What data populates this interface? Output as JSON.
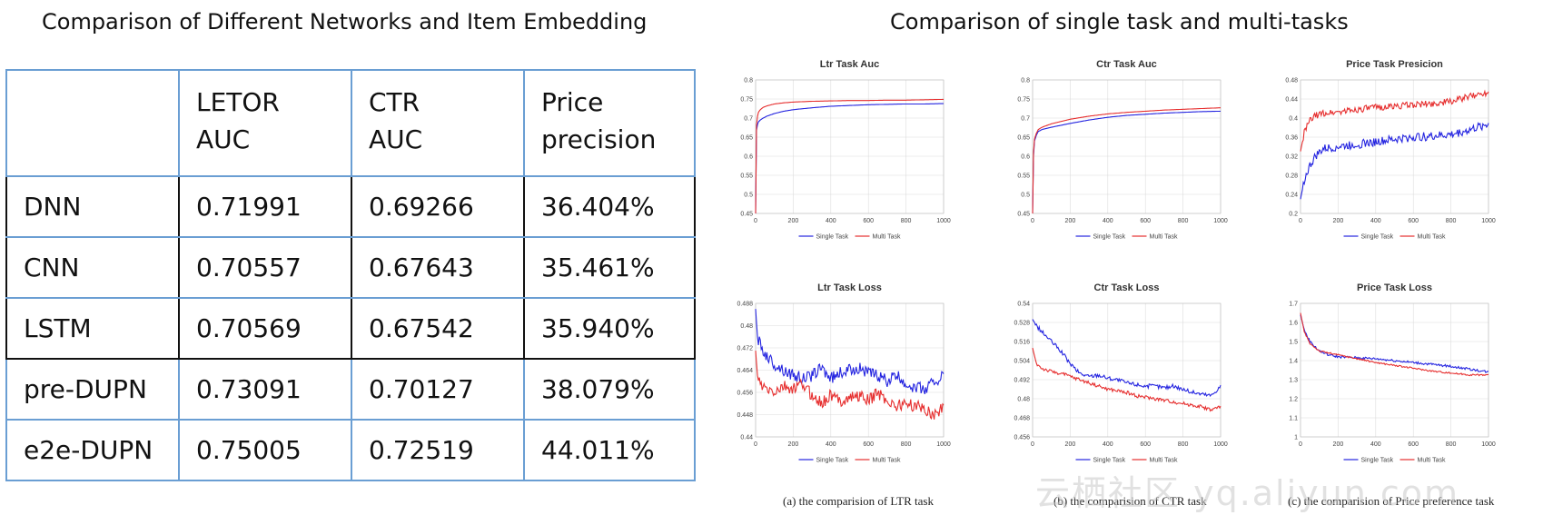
{
  "left_title": "Comparison of Different Networks and Item Embedding",
  "right_title": "Comparison of single task and multi-tasks",
  "table": {
    "headers": [
      [
        "",
        ""
      ],
      [
        "LETOR",
        "AUC"
      ],
      [
        "CTR",
        "AUC"
      ],
      [
        "Price",
        "precision"
      ]
    ],
    "rows": [
      [
        "DNN",
        "0.71991",
        "0.69266",
        "36.404%"
      ],
      [
        "CNN",
        "0.70557",
        "0.67643",
        "35.461%"
      ],
      [
        "LSTM",
        "0.70569",
        "0.67542",
        "35.940%"
      ],
      [
        "pre-DUPN",
        "0.73091",
        "0.70127",
        "38.079%"
      ],
      [
        "e2e-DUPN",
        "0.75005",
        "0.72519",
        "44.011%"
      ]
    ]
  },
  "captions": [
    "(a) the comparision of LTR task",
    "(b) the comparision of CTR task",
    "(c) the comparision of Price preference task"
  ],
  "watermark": "云栖社区 yq.aliyun.com",
  "colors": {
    "single": "#2424e0",
    "multi": "#e62e2e"
  },
  "chart_data": [
    {
      "type": "line",
      "title": "Ltr Task Auc",
      "xlim": [
        0,
        1000
      ],
      "ylim": [
        0.45,
        0.8
      ],
      "xticks": [
        "0",
        "200",
        "400",
        "600",
        "800",
        "1000"
      ],
      "yticks": [
        "0.45",
        "0.5",
        "0.55",
        "0.6",
        "0.65",
        "0.7",
        "0.75",
        "0.8"
      ],
      "series": [
        {
          "name": "Single Task",
          "x": [
            0,
            3,
            8,
            15,
            25,
            40,
            60,
            100,
            150,
            200,
            300,
            400,
            500,
            600,
            700,
            800,
            900,
            1000
          ],
          "y": [
            0.45,
            0.66,
            0.68,
            0.69,
            0.695,
            0.7,
            0.705,
            0.712,
            0.718,
            0.722,
            0.727,
            0.731,
            0.733,
            0.735,
            0.736,
            0.737,
            0.737,
            0.738
          ],
          "noise": 0
        },
        {
          "name": "Multi Task",
          "x": [
            0,
            3,
            8,
            15,
            25,
            40,
            60,
            100,
            150,
            200,
            300,
            400,
            500,
            600,
            700,
            800,
            900,
            1000
          ],
          "y": [
            0.45,
            0.67,
            0.7,
            0.715,
            0.722,
            0.728,
            0.732,
            0.737,
            0.74,
            0.742,
            0.744,
            0.745,
            0.746,
            0.746,
            0.747,
            0.747,
            0.748,
            0.749
          ],
          "noise": 0
        }
      ]
    },
    {
      "type": "line",
      "title": "Ctr Task Auc",
      "xlim": [
        0,
        1000
      ],
      "ylim": [
        0.45,
        0.8
      ],
      "xticks": [
        "0",
        "200",
        "400",
        "600",
        "800",
        "1000"
      ],
      "yticks": [
        "0.45",
        "0.5",
        "0.55",
        "0.6",
        "0.65",
        "0.7",
        "0.75",
        "0.8"
      ],
      "series": [
        {
          "name": "Single Task",
          "x": [
            0,
            5,
            10,
            20,
            30,
            50,
            100,
            200,
            300,
            400,
            500,
            600,
            700,
            800,
            900,
            1000
          ],
          "y": [
            0.45,
            0.6,
            0.64,
            0.655,
            0.665,
            0.67,
            0.676,
            0.686,
            0.695,
            0.702,
            0.707,
            0.71,
            0.713,
            0.715,
            0.717,
            0.718
          ],
          "noise": 0
        },
        {
          "name": "Multi Task",
          "x": [
            0,
            5,
            10,
            20,
            30,
            50,
            100,
            200,
            300,
            400,
            500,
            600,
            700,
            800,
            900,
            1000
          ],
          "y": [
            0.45,
            0.61,
            0.645,
            0.66,
            0.67,
            0.676,
            0.685,
            0.697,
            0.705,
            0.711,
            0.715,
            0.718,
            0.721,
            0.723,
            0.725,
            0.727
          ],
          "noise": 0
        }
      ]
    },
    {
      "type": "line",
      "title": "Price Task Presicion",
      "xlim": [
        0,
        1000
      ],
      "ylim": [
        0.2,
        0.48
      ],
      "xticks": [
        "0",
        "200",
        "400",
        "600",
        "800",
        "1000"
      ],
      "yticks": [
        "0.2",
        "0.24",
        "0.28",
        "0.32",
        "0.36",
        "0.4",
        "0.44",
        "0.48"
      ],
      "series": [
        {
          "name": "Single Task",
          "x": [
            0,
            20,
            50,
            80,
            120,
            200,
            300,
            400,
            500,
            600,
            700,
            800,
            900,
            1000
          ],
          "y": [
            0.23,
            0.27,
            0.3,
            0.32,
            0.335,
            0.34,
            0.345,
            0.35,
            0.355,
            0.36,
            0.362,
            0.365,
            0.375,
            0.388
          ],
          "noise": 0.009
        },
        {
          "name": "Multi Task",
          "x": [
            0,
            20,
            50,
            80,
            120,
            200,
            300,
            400,
            500,
            600,
            700,
            800,
            900,
            1000
          ],
          "y": [
            0.33,
            0.37,
            0.395,
            0.405,
            0.41,
            0.413,
            0.418,
            0.422,
            0.425,
            0.428,
            0.43,
            0.435,
            0.445,
            0.455
          ],
          "noise": 0.007
        }
      ]
    },
    {
      "type": "line",
      "title": "Ltr Task Loss",
      "xlim": [
        0,
        1000
      ],
      "ylim": [
        0.44,
        0.488
      ],
      "xticks": [
        "0",
        "200",
        "400",
        "600",
        "800",
        "1000"
      ],
      "yticks": [
        "0.44",
        "0.448",
        "0.456",
        "0.464",
        "0.472",
        "0.48",
        "0.488"
      ],
      "series": [
        {
          "name": "Single Task",
          "x": [
            0,
            10,
            30,
            60,
            100,
            150,
            200,
            250,
            300,
            350,
            400,
            450,
            500,
            550,
            600,
            650,
            700,
            750,
            800,
            850,
            900,
            950,
            1000
          ],
          "y": [
            0.486,
            0.476,
            0.472,
            0.469,
            0.466,
            0.464,
            0.462,
            0.461,
            0.462,
            0.465,
            0.461,
            0.463,
            0.464,
            0.465,
            0.463,
            0.462,
            0.46,
            0.462,
            0.459,
            0.458,
            0.457,
            0.46,
            0.462
          ],
          "noise": 0.0022
        },
        {
          "name": "Multi Task",
          "x": [
            0,
            10,
            30,
            60,
            100,
            150,
            200,
            250,
            300,
            350,
            400,
            450,
            500,
            550,
            600,
            650,
            700,
            750,
            800,
            850,
            900,
            950,
            1000
          ],
          "y": [
            0.471,
            0.462,
            0.458,
            0.457,
            0.456,
            0.458,
            0.457,
            0.459,
            0.455,
            0.452,
            0.455,
            0.453,
            0.454,
            0.455,
            0.453,
            0.456,
            0.453,
            0.451,
            0.452,
            0.451,
            0.45,
            0.448,
            0.451
          ],
          "noise": 0.0022
        }
      ]
    },
    {
      "type": "line",
      "title": "Ctr Task Loss",
      "xlim": [
        0,
        1000
      ],
      "ylim": [
        0.456,
        0.54
      ],
      "xticks": [
        "0",
        "200",
        "400",
        "600",
        "800",
        "1000"
      ],
      "yticks": [
        "0.456",
        "0.468",
        "0.48",
        "0.492",
        "0.504",
        "0.516",
        "0.528",
        "0.54"
      ],
      "series": [
        {
          "name": "Single Task",
          "x": [
            0,
            20,
            50,
            100,
            150,
            200,
            250,
            300,
            350,
            400,
            450,
            500,
            550,
            600,
            650,
            700,
            750,
            800,
            850,
            900,
            950,
            1000
          ],
          "y": [
            0.53,
            0.526,
            0.522,
            0.516,
            0.51,
            0.502,
            0.496,
            0.494,
            0.495,
            0.493,
            0.492,
            0.49,
            0.489,
            0.488,
            0.488,
            0.487,
            0.488,
            0.486,
            0.484,
            0.483,
            0.482,
            0.488
          ],
          "noise": 0.0013
        },
        {
          "name": "Multi Task",
          "x": [
            0,
            20,
            50,
            100,
            150,
            200,
            250,
            300,
            350,
            400,
            450,
            500,
            550,
            600,
            650,
            700,
            750,
            800,
            850,
            900,
            950,
            1000
          ],
          "y": [
            0.512,
            0.502,
            0.499,
            0.497,
            0.496,
            0.494,
            0.492,
            0.49,
            0.488,
            0.486,
            0.485,
            0.484,
            0.482,
            0.481,
            0.48,
            0.479,
            0.478,
            0.477,
            0.476,
            0.475,
            0.473,
            0.475
          ],
          "noise": 0.0011
        }
      ]
    },
    {
      "type": "line",
      "title": "Price Task Loss",
      "xlim": [
        0,
        1000
      ],
      "ylim": [
        1.0,
        1.7
      ],
      "xticks": [
        "0",
        "200",
        "400",
        "600",
        "800",
        "1000"
      ],
      "yticks": [
        "1",
        "1.1",
        "1.2",
        "1.3",
        "1.4",
        "1.5",
        "1.6",
        "1.7"
      ],
      "series": [
        {
          "name": "Single Task",
          "x": [
            0,
            20,
            50,
            100,
            150,
            200,
            300,
            400,
            500,
            600,
            700,
            800,
            900,
            1000
          ],
          "y": [
            1.64,
            1.56,
            1.5,
            1.45,
            1.43,
            1.42,
            1.415,
            1.41,
            1.4,
            1.39,
            1.38,
            1.37,
            1.355,
            1.34
          ],
          "noise": 0.006
        },
        {
          "name": "Multi Task",
          "x": [
            0,
            20,
            50,
            100,
            150,
            200,
            300,
            400,
            500,
            600,
            700,
            800,
            900,
            1000
          ],
          "y": [
            1.65,
            1.55,
            1.49,
            1.45,
            1.44,
            1.43,
            1.41,
            1.39,
            1.375,
            1.36,
            1.345,
            1.335,
            1.325,
            1.325
          ],
          "noise": 0.004
        }
      ]
    }
  ]
}
